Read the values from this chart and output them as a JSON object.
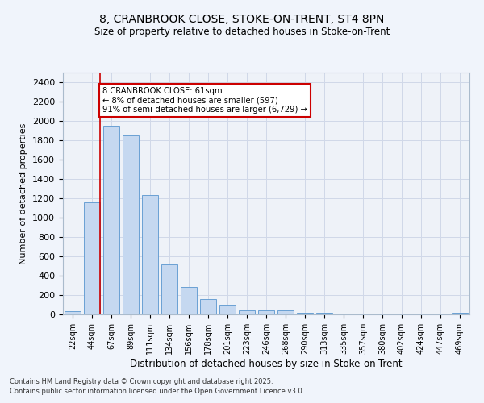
{
  "title_line1": "8, CRANBROOK CLOSE, STOKE-ON-TRENT, ST4 8PN",
  "title_line2": "Size of property relative to detached houses in Stoke-on-Trent",
  "xlabel": "Distribution of detached houses by size in Stoke-on-Trent",
  "ylabel": "Number of detached properties",
  "bar_labels": [
    "22sqm",
    "44sqm",
    "67sqm",
    "89sqm",
    "111sqm",
    "134sqm",
    "156sqm",
    "178sqm",
    "201sqm",
    "223sqm",
    "246sqm",
    "268sqm",
    "290sqm",
    "313sqm",
    "335sqm",
    "357sqm",
    "380sqm",
    "402sqm",
    "424sqm",
    "447sqm",
    "469sqm"
  ],
  "bar_values": [
    30,
    1160,
    1950,
    1850,
    1230,
    520,
    280,
    155,
    95,
    40,
    45,
    40,
    15,
    20,
    5,
    5,
    3,
    3,
    2,
    2,
    15
  ],
  "bar_color": "#c5d8f0",
  "bar_edge_color": "#6aa0d4",
  "grid_color": "#d0d8e8",
  "bg_color": "#eef2f8",
  "fig_bg_color": "#f0f4fb",
  "annotation_text": "8 CRANBROOK CLOSE: 61sqm\n← 8% of detached houses are smaller (597)\n91% of semi-detached houses are larger (6,729) →",
  "annotation_box_color": "#ffffff",
  "annotation_box_edge": "#cc0000",
  "red_line_x": 1.42,
  "ylim": [
    0,
    2500
  ],
  "yticks": [
    0,
    200,
    400,
    600,
    800,
    1000,
    1200,
    1400,
    1600,
    1800,
    2000,
    2200,
    2400
  ],
  "footer_line1": "Contains HM Land Registry data © Crown copyright and database right 2025.",
  "footer_line2": "Contains public sector information licensed under the Open Government Licence v3.0."
}
